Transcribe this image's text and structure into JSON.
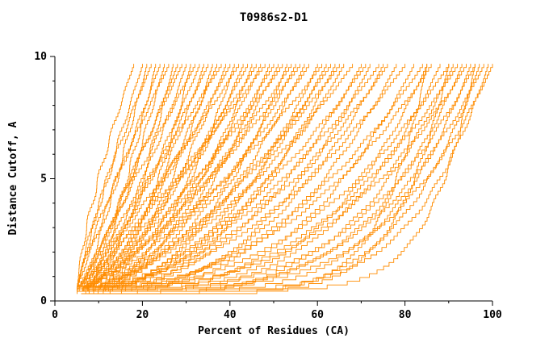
{
  "title": "T0986s2-D1",
  "chart_data": {
    "type": "line",
    "title": "T0986s2-D1",
    "xlabel": "Percent of Residues (CA)",
    "ylabel": "Distance Cutoff, A",
    "xlim": [
      0,
      100
    ],
    "ylim": [
      0,
      10
    ],
    "x_ticks": [
      0,
      20,
      40,
      60,
      80,
      100
    ],
    "x_minor_ticks": [
      10,
      30,
      50,
      70,
      90
    ],
    "y_ticks": [
      0,
      5,
      10
    ],
    "y_minor_ticks": [
      1,
      2,
      3,
      4,
      6,
      7,
      8,
      9
    ],
    "grid": false,
    "legend": "none",
    "line_color": "#ff8c00",
    "axis_color": "#000000",
    "curve_top_cutoff": 9.7,
    "curve_format": [
      "end_x_at_top",
      "shape_exponent",
      "start_x",
      "start_y"
    ],
    "curves": [
      [
        18,
        1.4,
        5,
        0.4
      ],
      [
        20,
        1.1,
        5,
        0.5
      ],
      [
        21,
        0.9,
        6,
        0.4
      ],
      [
        22,
        1.3,
        5,
        0.3
      ],
      [
        23,
        0.7,
        6,
        0.5
      ],
      [
        24,
        1.0,
        5,
        0.6
      ],
      [
        25,
        0.8,
        7,
        0.4
      ],
      [
        26,
        1.2,
        5,
        0.5
      ],
      [
        27,
        0.6,
        6,
        0.3
      ],
      [
        28,
        0.9,
        5,
        0.4
      ],
      [
        29,
        1.1,
        7,
        0.5
      ],
      [
        30,
        0.7,
        5,
        0.6
      ],
      [
        31,
        0.5,
        6,
        0.4
      ],
      [
        32,
        1.0,
        5,
        0.5
      ],
      [
        33,
        0.8,
        6,
        0.3
      ],
      [
        34,
        0.6,
        5,
        0.4
      ],
      [
        35,
        0.9,
        7,
        0.5
      ],
      [
        36,
        0.5,
        5,
        0.6
      ],
      [
        37,
        0.7,
        6,
        0.4
      ],
      [
        38,
        1.0,
        5,
        0.5
      ],
      [
        39,
        0.6,
        6,
        0.3
      ],
      [
        40,
        0.8,
        5,
        0.4
      ],
      [
        41,
        0.5,
        7,
        0.5
      ],
      [
        42,
        0.9,
        5,
        0.6
      ],
      [
        43,
        0.6,
        6,
        0.4
      ],
      [
        44,
        0.7,
        5,
        0.5
      ],
      [
        45,
        0.5,
        6,
        0.3
      ],
      [
        46,
        0.8,
        5,
        0.4
      ],
      [
        47,
        0.6,
        7,
        0.5
      ],
      [
        48,
        0.9,
        5,
        0.6
      ],
      [
        49,
        0.5,
        6,
        0.4
      ],
      [
        50,
        0.7,
        5,
        0.5
      ],
      [
        51,
        0.6,
        6,
        0.3
      ],
      [
        52,
        0.8,
        5,
        0.4
      ],
      [
        53,
        0.45,
        7,
        0.5
      ],
      [
        54,
        0.7,
        5,
        0.6
      ],
      [
        55,
        0.55,
        6,
        0.4
      ],
      [
        56,
        0.75,
        5,
        0.5
      ],
      [
        57,
        0.5,
        6,
        0.3
      ],
      [
        58,
        0.65,
        5,
        0.4
      ],
      [
        60,
        0.45,
        7,
        0.5
      ],
      [
        61,
        0.7,
        5,
        0.6
      ],
      [
        62,
        0.5,
        6,
        0.4
      ],
      [
        63,
        0.6,
        5,
        0.5
      ],
      [
        64,
        0.45,
        6,
        0.3
      ],
      [
        65,
        0.65,
        5,
        0.4
      ],
      [
        66,
        0.5,
        7,
        0.5
      ],
      [
        68,
        0.6,
        5,
        0.6
      ],
      [
        70,
        0.45,
        6,
        0.4
      ],
      [
        71,
        0.55,
        5,
        0.5
      ],
      [
        72,
        0.4,
        6,
        0.3
      ],
      [
        74,
        0.55,
        5,
        0.4
      ],
      [
        75,
        0.4,
        7,
        0.5
      ],
      [
        76,
        0.5,
        5,
        0.6
      ],
      [
        78,
        0.38,
        6,
        0.4
      ],
      [
        80,
        0.5,
        5,
        0.5
      ],
      [
        82,
        0.35,
        6,
        0.3
      ],
      [
        84,
        0.45,
        5,
        0.4
      ],
      [
        85,
        0.3,
        7,
        0.5
      ],
      [
        86,
        0.42,
        5,
        0.6
      ],
      [
        88,
        0.3,
        6,
        0.4
      ],
      [
        90,
        0.4,
        5,
        0.5
      ],
      [
        91,
        0.28,
        6,
        0.3
      ],
      [
        92,
        0.38,
        5,
        0.4
      ],
      [
        93,
        0.25,
        7,
        0.5
      ],
      [
        94,
        0.35,
        5,
        0.6
      ],
      [
        95,
        0.22,
        6,
        0.4
      ],
      [
        96,
        0.3,
        5,
        0.5
      ],
      [
        97,
        0.2,
        6,
        0.3
      ],
      [
        98,
        0.28,
        5,
        0.4
      ],
      [
        99,
        0.18,
        6,
        0.5
      ],
      [
        100,
        0.25,
        5,
        0.5
      ],
      [
        96,
        0.12,
        9,
        0.5
      ],
      [
        90,
        0.15,
        10,
        0.4
      ],
      [
        85,
        0.14,
        11,
        0.5
      ]
    ]
  }
}
